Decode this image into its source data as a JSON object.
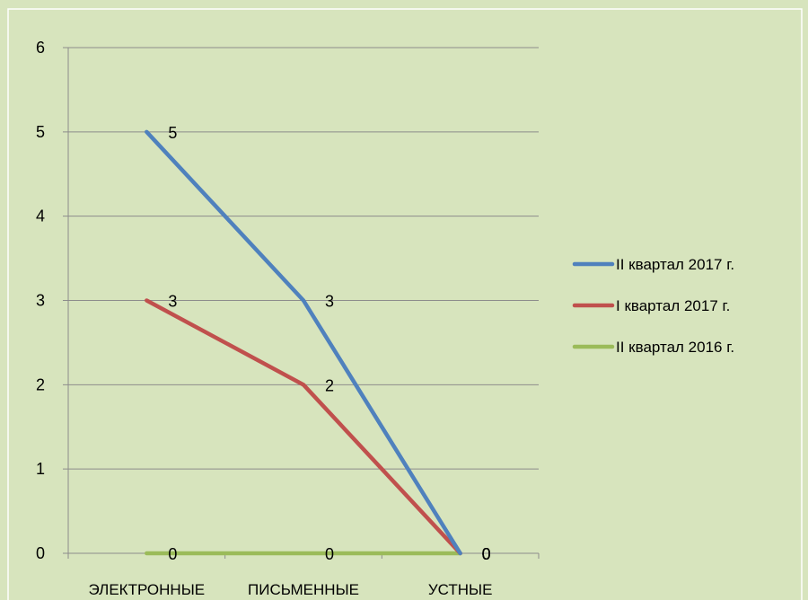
{
  "chart_data": {
    "type": "line",
    "title": "",
    "xlabel": "",
    "ylabel": "",
    "categories": [
      "ЭЛЕКТРОННЫЕ",
      "ПИСЬМЕННЫЕ",
      "УСТНЫЕ"
    ],
    "ylim": [
      0,
      6
    ],
    "yticks": [
      0,
      1,
      2,
      3,
      4,
      5,
      6
    ],
    "grid": true,
    "legend_position": "right",
    "series": [
      {
        "name": "II квартал 2017 г.",
        "values": [
          5,
          3,
          0
        ],
        "color": "#4f81bd"
      },
      {
        "name": "I квартал 2017 г.",
        "values": [
          3,
          2,
          0
        ],
        "color": "#c0504d"
      },
      {
        "name": "II квартал 2016 г.",
        "values": [
          0,
          0,
          0
        ],
        "color": "#9bbb59"
      }
    ]
  },
  "colors": {
    "background": "#d7e4bd",
    "frame": "#ffffff",
    "gridline": "#8c8c8c"
  }
}
